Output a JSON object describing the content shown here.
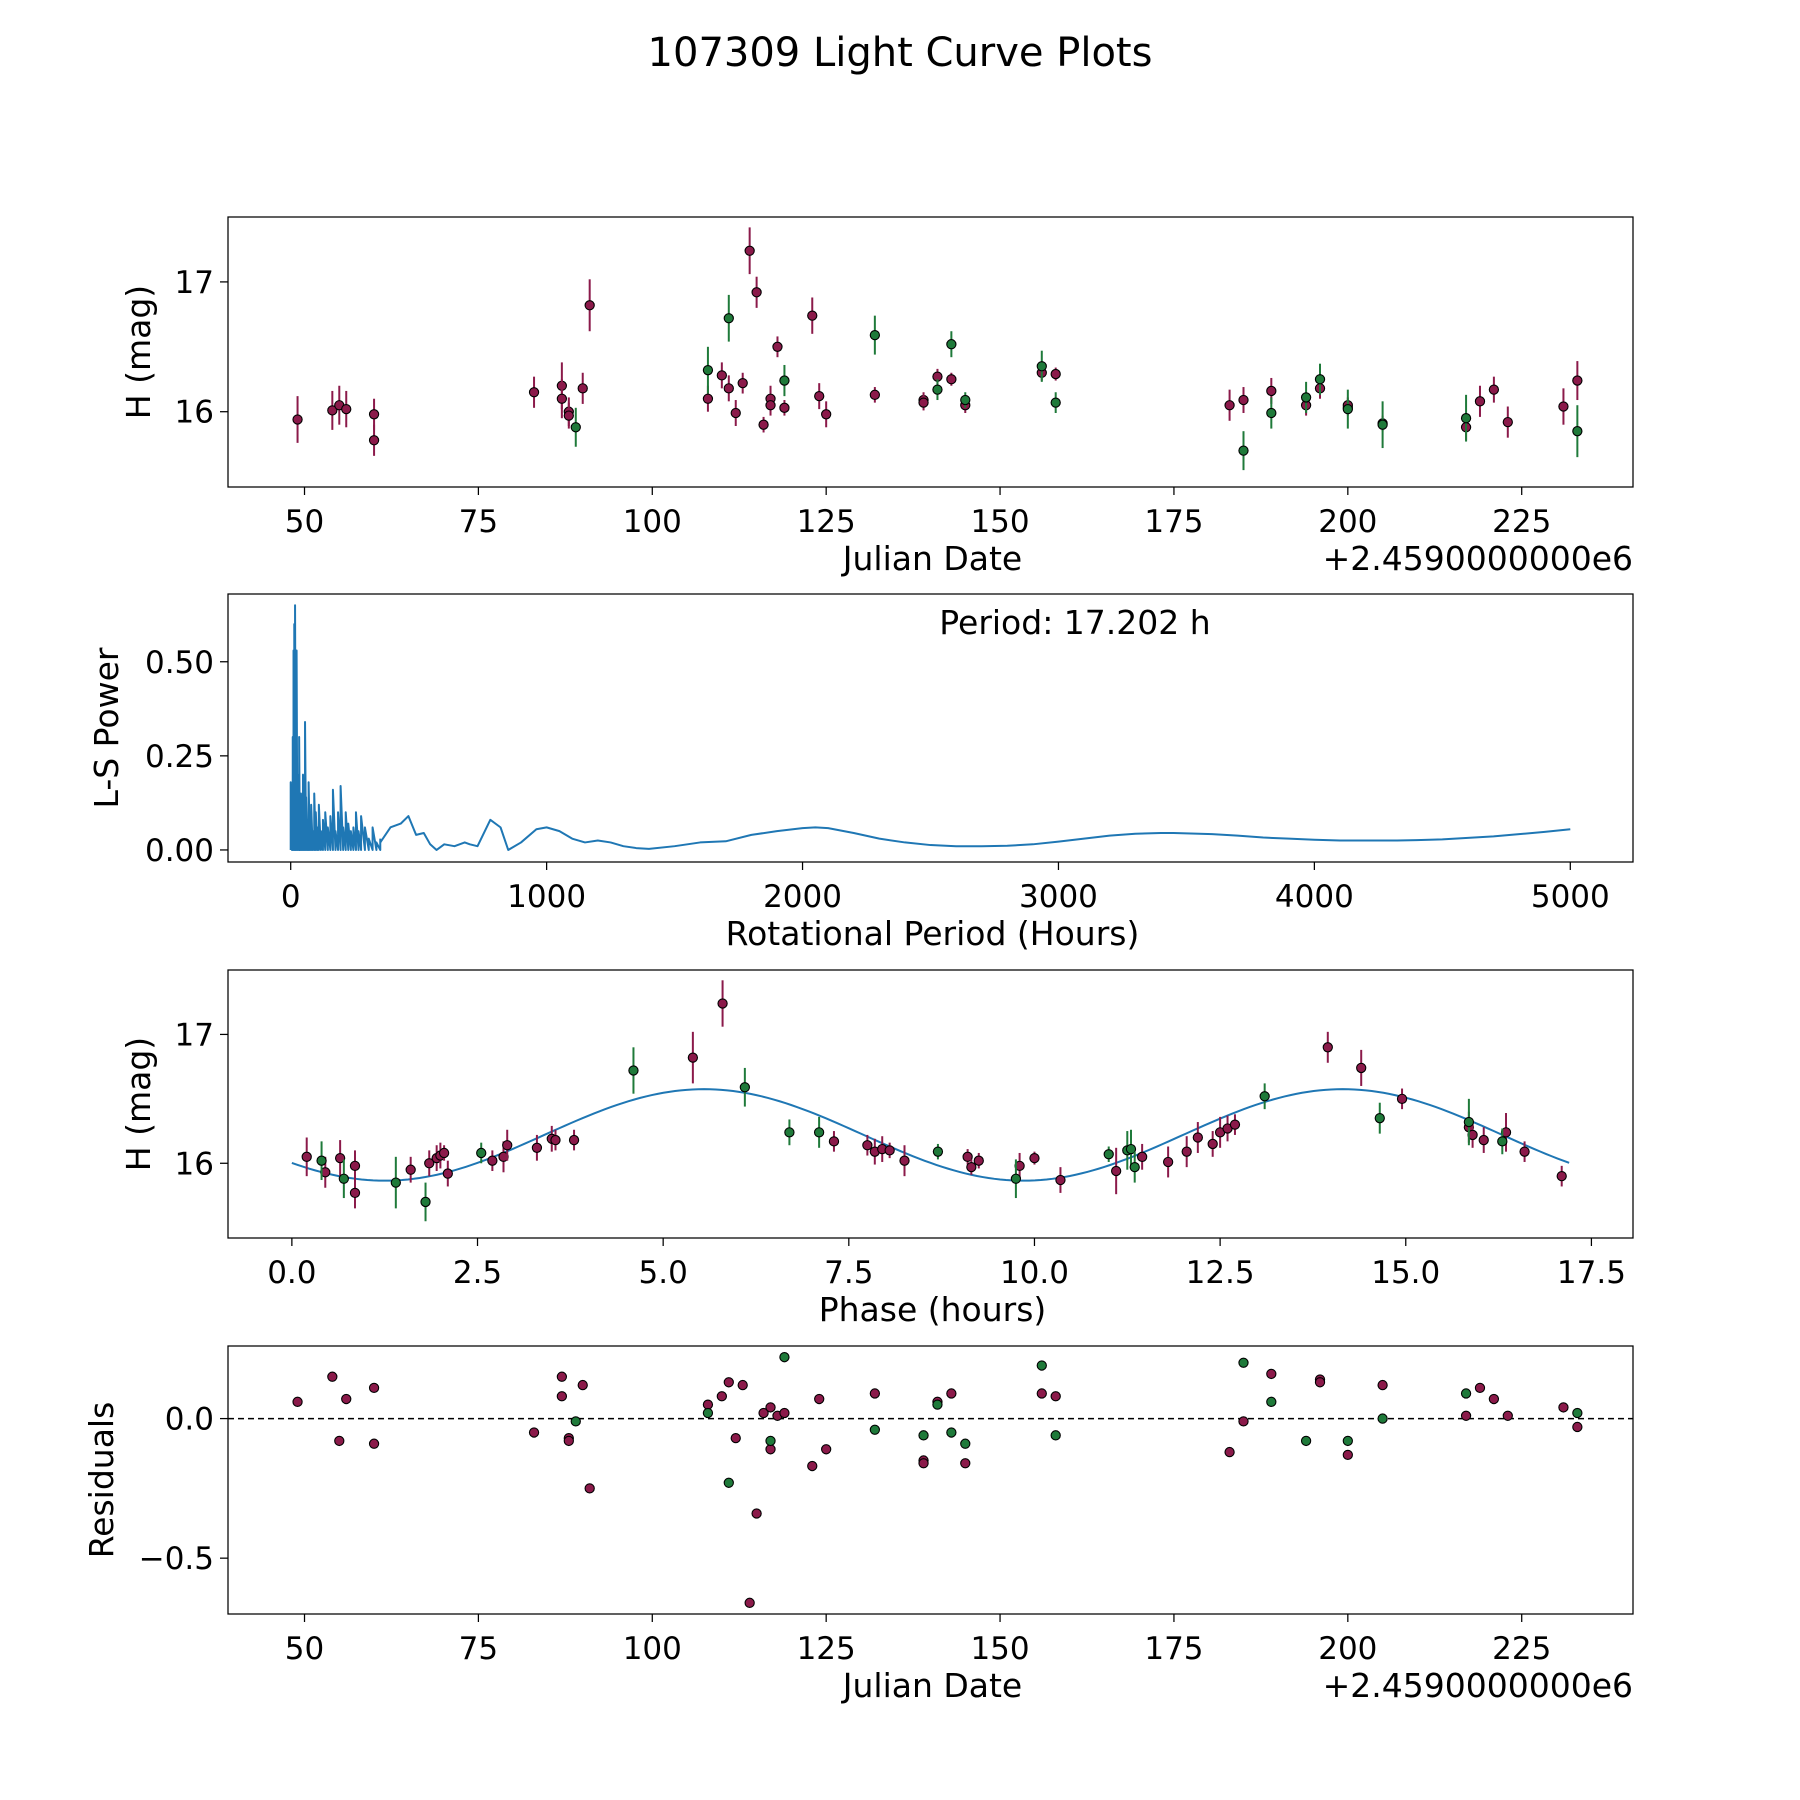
{
  "figure": {
    "title": "107309 Light Curve Plots",
    "colors": {
      "red": "#8b1a4a",
      "green": "#1f7a3a",
      "blue": "#1f77b4",
      "edge": "#000000"
    }
  },
  "chart_data": [
    {
      "id": "raw",
      "type": "scatter",
      "title": "",
      "xlabel": "Julian Date",
      "ylabel": "H (mag)",
      "offset_text": "+2.4590000000e6",
      "xlim": [
        39,
        241
      ],
      "ylim": [
        15.42,
        17.5
      ],
      "xticks": [
        50,
        75,
        100,
        125,
        150,
        175,
        200,
        225
      ],
      "xtick_labels": [
        "50",
        "75",
        "100",
        "125",
        "150",
        "175",
        "200",
        "225"
      ],
      "yticks": [
        16,
        17
      ],
      "ytick_labels": [
        "16",
        "17"
      ],
      "series": [
        {
          "name": "red",
          "x": [
            49,
            54,
            55,
            56,
            60,
            60,
            83,
            87,
            87,
            88,
            88,
            90,
            91,
            108,
            110,
            111,
            112,
            113,
            114,
            115,
            116,
            117,
            117,
            118,
            119,
            123,
            124,
            125,
            132,
            139,
            139,
            141,
            143,
            145,
            156,
            158,
            183,
            185,
            189,
            194,
            196,
            200,
            200,
            205,
            217,
            219,
            221,
            223,
            231,
            233
          ],
          "y": [
            15.94,
            16.01,
            16.05,
            16.02,
            15.98,
            15.78,
            16.15,
            16.2,
            16.1,
            16.0,
            15.97,
            16.18,
            16.82,
            16.1,
            16.28,
            16.18,
            15.99,
            16.22,
            17.24,
            16.92,
            15.9,
            16.1,
            16.05,
            16.5,
            16.03,
            16.74,
            16.12,
            15.98,
            16.13,
            16.09,
            16.07,
            16.27,
            16.25,
            16.05,
            16.3,
            16.29,
            16.05,
            16.09,
            16.16,
            16.05,
            16.18,
            16.03,
            16.05,
            15.91,
            15.88,
            16.08,
            16.17,
            15.92,
            16.04,
            16.24
          ],
          "err": [
            0.18,
            0.15,
            0.15,
            0.14,
            0.12,
            0.12,
            0.12,
            0.18,
            0.15,
            0.11,
            0.1,
            0.12,
            0.2,
            0.1,
            0.1,
            0.1,
            0.1,
            0.08,
            0.18,
            0.12,
            0.06,
            0.1,
            0.08,
            0.08,
            0.06,
            0.14,
            0.1,
            0.1,
            0.06,
            0.06,
            0.06,
            0.06,
            0.05,
            0.06,
            0.06,
            0.05,
            0.12,
            0.1,
            0.1,
            0.08,
            0.08,
            0.06,
            0.06,
            0.06,
            0.1,
            0.12,
            0.1,
            0.12,
            0.14,
            0.15
          ]
        },
        {
          "name": "green",
          "x": [
            89,
            108,
            111,
            119,
            132,
            141,
            143,
            145,
            156,
            158,
            185,
            189,
            194,
            196,
            200,
            205,
            217,
            233
          ],
          "y": [
            15.88,
            16.32,
            16.72,
            16.24,
            16.59,
            16.17,
            16.52,
            16.09,
            16.35,
            16.07,
            15.7,
            15.99,
            16.11,
            16.25,
            16.02,
            15.9,
            15.95,
            15.85
          ],
          "err": [
            0.15,
            0.18,
            0.18,
            0.12,
            0.15,
            0.08,
            0.1,
            0.06,
            0.12,
            0.08,
            0.15,
            0.12,
            0.12,
            0.12,
            0.15,
            0.18,
            0.18,
            0.2
          ]
        }
      ]
    },
    {
      "id": "periodogram",
      "type": "line",
      "title": "",
      "xlabel": "Rotational Period (Hours)",
      "ylabel": "L-S Power",
      "annotation": "Period: 17.202 h",
      "xlim": [
        -245,
        5245
      ],
      "ylim": [
        -0.032,
        0.68
      ],
      "xticks": [
        0,
        1000,
        2000,
        3000,
        4000,
        5000
      ],
      "xtick_labels": [
        "0",
        "1000",
        "2000",
        "3000",
        "4000",
        "5000"
      ],
      "yticks": [
        0,
        0.25,
        0.5
      ],
      "ytick_labels": [
        "0.00",
        "0.25",
        "0.50"
      ],
      "spike_x": [
        0,
        5,
        8,
        11,
        14,
        17,
        20,
        23,
        26,
        29,
        33,
        36,
        40,
        44,
        48,
        52,
        56,
        60,
        65,
        70,
        75,
        80,
        86,
        92,
        98,
        104,
        110,
        118,
        126,
        135,
        145,
        155,
        165,
        175,
        185,
        195,
        205,
        215,
        225,
        235,
        245,
        255,
        265,
        275,
        290,
        305,
        320,
        335,
        350
      ],
      "spike_y": [
        0.18,
        0.1,
        0.3,
        0.53,
        0.6,
        0.65,
        0.45,
        0.53,
        0.2,
        0.12,
        0.3,
        0.1,
        0.15,
        0.08,
        0.2,
        0.12,
        0.34,
        0.14,
        0.08,
        0.18,
        0.06,
        0.12,
        0.05,
        0.15,
        0.1,
        0.06,
        0.12,
        0.05,
        0.08,
        0.1,
        0.06,
        0.09,
        0.16,
        0.05,
        0.1,
        0.17,
        0.06,
        0.1,
        0.07,
        0.05,
        0.06,
        0.1,
        0.05,
        0.09,
        0.06,
        0.03,
        0.06,
        0.02,
        0.03
      ],
      "curve_x": [
        350,
        390,
        430,
        460,
        490,
        520,
        545,
        570,
        600,
        640,
        680,
        700,
        730,
        780,
        820,
        850,
        900,
        960,
        1000,
        1050,
        1100,
        1150,
        1200,
        1250,
        1300,
        1350,
        1400,
        1500,
        1600,
        1700,
        1800,
        1900,
        2000,
        2050,
        2100,
        2200,
        2300,
        2400,
        2500,
        2600,
        2700,
        2800,
        2900,
        3000,
        3100,
        3200,
        3300,
        3400,
        3450,
        3500,
        3600,
        3700,
        3800,
        3900,
        4000,
        4100,
        4200,
        4300,
        4400,
        4500,
        4600,
        4700,
        4800,
        4900,
        5000
      ],
      "curve_y": [
        0.02,
        0.06,
        0.07,
        0.09,
        0.04,
        0.045,
        0.015,
        0.0,
        0.015,
        0.01,
        0.02,
        0.015,
        0.01,
        0.08,
        0.06,
        0.0,
        0.02,
        0.055,
        0.06,
        0.05,
        0.03,
        0.02,
        0.025,
        0.02,
        0.01,
        0.005,
        0.003,
        0.01,
        0.02,
        0.023,
        0.04,
        0.05,
        0.058,
        0.06,
        0.058,
        0.045,
        0.03,
        0.02,
        0.013,
        0.01,
        0.01,
        0.011,
        0.015,
        0.022,
        0.03,
        0.038,
        0.043,
        0.045,
        0.045,
        0.044,
        0.042,
        0.038,
        0.033,
        0.03,
        0.027,
        0.025,
        0.025,
        0.025,
        0.026,
        0.028,
        0.032,
        0.036,
        0.042,
        0.048,
        0.055
      ]
    },
    {
      "id": "phased",
      "type": "scatter",
      "title": "",
      "xlabel": "Phase (hours)",
      "ylabel": "H (mag)",
      "xlim": [
        -0.86,
        18.06
      ],
      "ylim": [
        15.42,
        17.5
      ],
      "xticks": [
        0,
        2.5,
        5,
        7.5,
        10,
        12.5,
        15,
        17.5
      ],
      "xtick_labels": [
        "0.0",
        "2.5",
        "5.0",
        "7.5",
        "10.0",
        "12.5",
        "15.0",
        "17.5"
      ],
      "yticks": [
        16,
        17
      ],
      "ytick_labels": [
        "16",
        "17"
      ],
      "model": {
        "mean": 16.22,
        "amplitude": 0.355,
        "period_hours": 17.202,
        "phase_of_max": 5.55,
        "x_range": [
          0,
          17.2
        ]
      },
      "series": [
        {
          "name": "red",
          "x": [
            0.2,
            0.45,
            0.65,
            0.85,
            0.85,
            1.6,
            1.85,
            1.95,
            2.0,
            2.05,
            2.1,
            2.7,
            2.85,
            2.9,
            3.3,
            3.5,
            3.55,
            3.8,
            5.4,
            5.8,
            7.3,
            7.75,
            7.85,
            7.95,
            8.05,
            8.25,
            9.1,
            9.15,
            9.25,
            9.8,
            10.0,
            10.35,
            11.1,
            11.45,
            11.8,
            12.05,
            12.2,
            12.4,
            12.5,
            12.6,
            12.7,
            13.95,
            14.4,
            14.95,
            15.85,
            15.9,
            16.05,
            16.35,
            16.6,
            17.1
          ],
          "y": [
            16.05,
            15.93,
            16.04,
            15.98,
            15.77,
            15.95,
            16.0,
            16.04,
            16.06,
            16.08,
            15.92,
            16.02,
            16.05,
            16.14,
            16.12,
            16.19,
            16.18,
            16.18,
            16.82,
            17.24,
            16.17,
            16.14,
            16.09,
            16.11,
            16.1,
            16.02,
            16.05,
            15.97,
            16.02,
            15.98,
            16.04,
            15.87,
            15.94,
            16.05,
            16.01,
            16.09,
            16.2,
            16.15,
            16.24,
            16.27,
            16.3,
            16.9,
            16.74,
            16.5,
            16.28,
            16.22,
            16.18,
            16.24,
            16.09,
            15.9
          ],
          "err": [
            0.15,
            0.12,
            0.14,
            0.12,
            0.12,
            0.1,
            0.1,
            0.1,
            0.1,
            0.06,
            0.1,
            0.08,
            0.12,
            0.12,
            0.1,
            0.1,
            0.08,
            0.08,
            0.2,
            0.18,
            0.08,
            0.08,
            0.1,
            0.1,
            0.06,
            0.12,
            0.06,
            0.06,
            0.06,
            0.1,
            0.05,
            0.1,
            0.18,
            0.1,
            0.12,
            0.12,
            0.12,
            0.1,
            0.12,
            0.1,
            0.08,
            0.12,
            0.14,
            0.08,
            0.12,
            0.1,
            0.1,
            0.15,
            0.08,
            0.08
          ]
        },
        {
          "name": "green",
          "x": [
            0.4,
            0.7,
            1.4,
            1.8,
            2.55,
            4.6,
            6.1,
            6.7,
            7.1,
            8.7,
            9.75,
            11.0,
            11.25,
            11.3,
            11.35,
            13.1,
            14.65,
            15.85,
            16.3
          ],
          "y": [
            16.02,
            15.88,
            15.85,
            15.7,
            16.08,
            16.72,
            16.59,
            16.24,
            16.24,
            16.09,
            15.88,
            16.07,
            16.1,
            16.11,
            15.97,
            16.52,
            16.35,
            16.32,
            16.17
          ],
          "err": [
            0.15,
            0.15,
            0.2,
            0.15,
            0.08,
            0.18,
            0.15,
            0.1,
            0.12,
            0.06,
            0.15,
            0.06,
            0.15,
            0.15,
            0.12,
            0.1,
            0.12,
            0.18,
            0.1
          ]
        }
      ]
    },
    {
      "id": "residuals",
      "type": "scatter",
      "title": "",
      "xlabel": "Julian Date",
      "ylabel": "Residuals",
      "offset_text": "+2.4590000000e6",
      "xlim": [
        39,
        241
      ],
      "ylim": [
        -0.7,
        0.26
      ],
      "xticks": [
        50,
        75,
        100,
        125,
        150,
        175,
        200,
        225
      ],
      "xtick_labels": [
        "50",
        "75",
        "100",
        "125",
        "150",
        "175",
        "200",
        "225"
      ],
      "yticks": [
        -0.5,
        0
      ],
      "ytick_labels": [
        "−0.5",
        "0.0"
      ],
      "zero_line": 0,
      "series": [
        {
          "name": "red",
          "x": [
            49,
            54,
            55,
            56,
            60,
            60,
            83,
            87,
            87,
            88,
            88,
            90,
            91,
            108,
            110,
            111,
            112,
            113,
            114,
            115,
            116,
            117,
            117,
            118,
            119,
            123,
            124,
            125,
            132,
            139,
            139,
            141,
            143,
            145,
            156,
            158,
            183,
            185,
            189,
            196,
            196,
            200,
            205,
            217,
            219,
            221,
            223,
            231,
            233
          ],
          "y": [
            0.06,
            0.15,
            -0.08,
            0.07,
            0.11,
            -0.09,
            -0.05,
            0.15,
            0.08,
            -0.07,
            -0.08,
            0.12,
            -0.25,
            0.05,
            0.08,
            0.13,
            -0.07,
            0.12,
            -0.66,
            -0.34,
            0.02,
            0.04,
            -0.11,
            0.01,
            0.02,
            -0.17,
            0.07,
            -0.11,
            0.09,
            -0.15,
            -0.16,
            0.06,
            0.09,
            -0.16,
            0.09,
            0.08,
            -0.12,
            -0.01,
            0.16,
            0.14,
            0.13,
            -0.13,
            0.12,
            0.01,
            0.11,
            0.07,
            0.01,
            0.04,
            -0.03
          ]
        },
        {
          "name": "green",
          "x": [
            89,
            108,
            111,
            117,
            119,
            132,
            139,
            141,
            143,
            145,
            156,
            158,
            185,
            189,
            194,
            200,
            205,
            217,
            233
          ],
          "y": [
            -0.01,
            0.02,
            -0.23,
            -0.08,
            0.22,
            -0.04,
            -0.06,
            0.05,
            -0.05,
            -0.09,
            0.19,
            -0.06,
            0.2,
            0.06,
            -0.08,
            -0.08,
            0.0,
            0.09,
            0.02
          ]
        }
      ]
    }
  ]
}
